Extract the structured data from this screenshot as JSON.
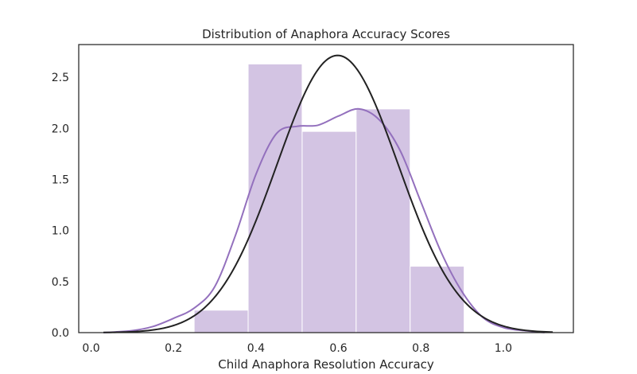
{
  "chart_data": {
    "type": "histogram",
    "title": "Distribution of Anaphora Accuracy Scores",
    "xlabel": "Child Anaphora Resolution Accuracy",
    "ylabel": "",
    "xlim": [
      -0.03,
      1.17
    ],
    "ylim": [
      0,
      2.82
    ],
    "xticks": [
      0.0,
      0.2,
      0.4,
      0.6,
      0.8,
      1.0
    ],
    "xtick_labels": [
      "0.0",
      "0.2",
      "0.4",
      "0.6",
      "0.8",
      "1.0"
    ],
    "yticks": [
      0.0,
      0.5,
      1.0,
      1.5,
      2.0,
      2.5
    ],
    "ytick_labels": [
      "0.0",
      "0.5",
      "1.0",
      "1.5",
      "2.0",
      "2.5"
    ],
    "grid": false,
    "legend": "none",
    "histogram": {
      "bins": [
        {
          "x0": 0.25,
          "x1": 0.381,
          "density": 0.22
        },
        {
          "x0": 0.381,
          "x1": 0.512,
          "density": 2.63
        },
        {
          "x0": 0.512,
          "x1": 0.643,
          "density": 1.97
        },
        {
          "x0": 0.643,
          "x1": 0.774,
          "density": 2.19
        },
        {
          "x0": 0.774,
          "x1": 0.905,
          "density": 0.65
        }
      ],
      "color": "#d3c4e3"
    },
    "kde": {
      "color": "#9370bd",
      "x": [
        0.03,
        0.1,
        0.15,
        0.2,
        0.25,
        0.3,
        0.35,
        0.4,
        0.45,
        0.5,
        0.55,
        0.6,
        0.65,
        0.7,
        0.75,
        0.8,
        0.85,
        0.9,
        0.95,
        1.0,
        1.05,
        1.1
      ],
      "y": [
        0.0,
        0.02,
        0.06,
        0.14,
        0.24,
        0.45,
        0.95,
        1.55,
        1.95,
        2.02,
        2.03,
        2.12,
        2.19,
        2.08,
        1.78,
        1.28,
        0.78,
        0.4,
        0.15,
        0.05,
        0.02,
        0.0
      ]
    },
    "normal_fit": {
      "color": "#222222",
      "mean": 0.598,
      "std": 0.147,
      "x_range": [
        0.03,
        1.12
      ]
    }
  }
}
